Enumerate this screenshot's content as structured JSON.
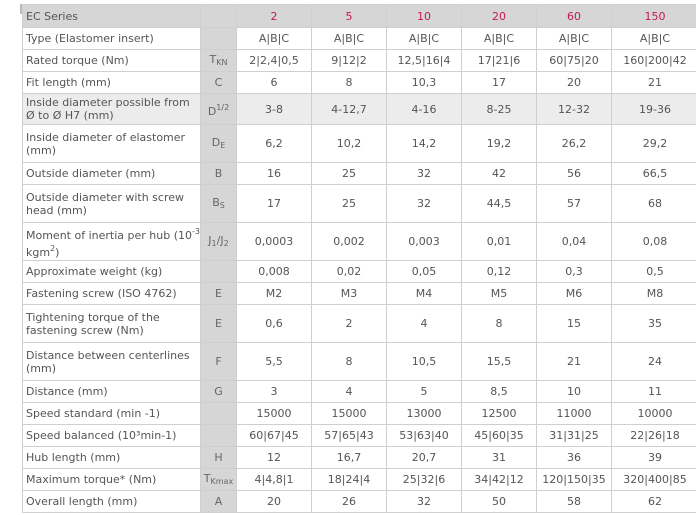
{
  "header": {
    "series": "EC Series",
    "sizes": [
      "2",
      "5",
      "10",
      "20",
      "60",
      "150"
    ]
  },
  "rows": [
    {
      "label": "Type (Elastomer insert)",
      "sym": "",
      "vals": [
        "A|B|C",
        "A|B|C",
        "A|B|C",
        "A|B|C",
        "A|B|C",
        "A|B|C"
      ]
    },
    {
      "label": "Rated torque (Nm)",
      "sym": "TKN",
      "vals": [
        "2|2,4|0,5",
        "9|12|2",
        "12,5|16|4",
        "17|21|6",
        "60|75|20",
        "160|200|42"
      ]
    },
    {
      "label": "Fit length (mm)",
      "sym": "C",
      "vals": [
        "6",
        "8",
        "10,3",
        "17",
        "20",
        "21"
      ]
    },
    {
      "label": "Inside diameter possible from Ø to Ø H7 (mm)",
      "sym": "D1/2",
      "vals": [
        "3-8",
        "4-12,7",
        "4-16",
        "8-25",
        "12-32",
        "19-36"
      ]
    },
    {
      "label": "Inside diameter of elastomer (mm)",
      "sym": "DE",
      "vals": [
        "6,2",
        "10,2",
        "14,2",
        "19,2",
        "26,2",
        "29,2"
      ]
    },
    {
      "label": "Outside diameter (mm)",
      "sym": "B",
      "vals": [
        "16",
        "25",
        "32",
        "42",
        "56",
        "66,5"
      ]
    },
    {
      "label": "Outside diameter with screw head (mm)",
      "sym": "BS",
      "vals": [
        "17",
        "25",
        "32",
        "44,5",
        "57",
        "68"
      ]
    },
    {
      "label": "Moment of inertia per hub (10-3 kgm2)",
      "sym": "J1/J2",
      "vals": [
        "0,0003",
        "0,002",
        "0,003",
        "0,01",
        "0,04",
        "0,08"
      ]
    },
    {
      "label": "Approximate weight (kg)",
      "sym": "",
      "vals": [
        "0,008",
        "0,02",
        "0,05",
        "0,12",
        "0,3",
        "0,5"
      ]
    },
    {
      "label": "Fastening screw (ISO 4762)",
      "sym": "E",
      "vals": [
        "M2",
        "M3",
        "M4",
        "M5",
        "M6",
        "M8"
      ]
    },
    {
      "label": "Tightening torque of the fastening screw (Nm)",
      "sym": "E",
      "vals": [
        "0,6",
        "2",
        "4",
        "8",
        "15",
        "35"
      ]
    },
    {
      "label": "Distance between centerlines (mm)",
      "sym": "F",
      "vals": [
        "5,5",
        "8",
        "10,5",
        "15,5",
        "21",
        "24"
      ]
    },
    {
      "label": "Distance (mm)",
      "sym": "G",
      "vals": [
        "3",
        "4",
        "5",
        "8,5",
        "10",
        "11"
      ]
    },
    {
      "label": "Speed standard (min -1)",
      "sym": "",
      "vals": [
        "15000",
        "15000",
        "13000",
        "12500",
        "11000",
        "10000"
      ]
    },
    {
      "label": "Speed balanced (10³min-1)",
      "sym": "",
      "vals": [
        "60|67|45",
        "57|65|43",
        "53|63|40",
        "45|60|35",
        "31|31|25",
        "22|26|18"
      ]
    },
    {
      "label": "Hub length (mm)",
      "sym": "H",
      "vals": [
        "12",
        "16,7",
        "20,7",
        "31",
        "36",
        "39"
      ]
    },
    {
      "label": "Maximum torque* (Nm)",
      "sym": "TKmax",
      "vals": [
        "4|4,8|1",
        "18|24|4",
        "25|32|6",
        "34|42|12",
        "120|150|35",
        "320|400|85"
      ]
    },
    {
      "label": "Overall length (mm)",
      "sym": "A",
      "vals": [
        "20",
        "26",
        "32",
        "50",
        "58",
        "62"
      ]
    }
  ]
}
